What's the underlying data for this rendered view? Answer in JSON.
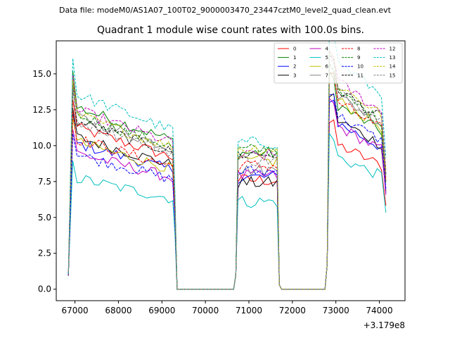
{
  "header": {
    "data_file": "Data file: modeM0/AS1A07_100T02_9000003470_23447cztM0_level2_quad_clean.evt"
  },
  "chart_data": {
    "type": "line",
    "title": "Quadrant 1 module wise count rates with 100.0s bins.",
    "xlabel": "",
    "ylabel": "",
    "x_offset_label": "+3.179e8",
    "xlim": [
      66570,
      74590
    ],
    "ylim": [
      -0.8,
      17.3
    ],
    "xticks": [
      67000,
      68000,
      69000,
      70000,
      71000,
      72000,
      73000,
      74000
    ],
    "xtick_labels": [
      "67000",
      "68000",
      "69000",
      "70000",
      "71000",
      "72000",
      "73000",
      "74000"
    ],
    "yticks": [
      0.0,
      2.5,
      5.0,
      7.5,
      10.0,
      12.5,
      15.0
    ],
    "ytick_labels": [
      "0.0",
      "2.5",
      "5.0",
      "7.5",
      "10.0",
      "12.5",
      "15.0"
    ],
    "legend_location": "upper right",
    "legend_columns": 4,
    "segments": [
      {
        "x_start": 66850,
        "x_end": 69250
      },
      {
        "x_start": 70750,
        "x_end": 71650
      },
      {
        "x_start": 72850,
        "x_end": 74150
      }
    ],
    "zero_gaps": [
      [
        69350,
        70650
      ],
      [
        71750,
        72750
      ]
    ],
    "series": [
      {
        "name": "0",
        "color": "#ff0000",
        "dash": "solid",
        "levels": [
          10.2,
          7.6,
          9.4
        ]
      },
      {
        "name": "1",
        "color": "#008000",
        "dash": "solid",
        "levels": [
          11.5,
          9.5,
          12.0
        ]
      },
      {
        "name": "2",
        "color": "#0000ff",
        "dash": "solid",
        "levels": [
          9.2,
          7.8,
          10.8
        ]
      },
      {
        "name": "3",
        "color": "#000000",
        "dash": "solid",
        "levels": [
          9.6,
          7.4,
          11.0
        ]
      },
      {
        "name": "4",
        "color": "#bf00bf",
        "dash": "solid",
        "levels": [
          8.6,
          7.9,
          10.6
        ]
      },
      {
        "name": "5",
        "color": "#00bfbf",
        "dash": "solid",
        "levels": [
          7.0,
          6.1,
          8.6
        ]
      },
      {
        "name": "6",
        "color": "#bfbf00",
        "dash": "solid",
        "levels": [
          9.3,
          8.9,
          12.3
        ]
      },
      {
        "name": "7",
        "color": "#808080",
        "dash": "solid",
        "levels": [
          10.9,
          8.3,
          12.6
        ]
      },
      {
        "name": "8",
        "color": "#ff0000",
        "dash": "dashed",
        "levels": [
          9.5,
          8.6,
          12.2
        ]
      },
      {
        "name": "9",
        "color": "#008000",
        "dash": "dashed",
        "levels": [
          11.0,
          9.7,
          12.8
        ]
      },
      {
        "name": "10",
        "color": "#0000ff",
        "dash": "dashed",
        "levels": [
          8.5,
          8.2,
          11.3
        ]
      },
      {
        "name": "11",
        "color": "#000000",
        "dash": "dashed",
        "levels": [
          10.6,
          9.4,
          13.0
        ]
      },
      {
        "name": "12",
        "color": "#bf00bf",
        "dash": "dashed",
        "levels": [
          11.3,
          9.3,
          13.5
        ]
      },
      {
        "name": "13",
        "color": "#00bfbf",
        "dash": "dashed",
        "levels": [
          12.3,
          10.2,
          14.8
        ]
      },
      {
        "name": "14",
        "color": "#bfbf00",
        "dash": "dashed",
        "levels": [
          11.0,
          9.8,
          13.3
        ]
      },
      {
        "name": "15",
        "color": "#808080",
        "dash": "dashed",
        "levels": [
          10.6,
          9.0,
          12.9
        ]
      }
    ]
  }
}
